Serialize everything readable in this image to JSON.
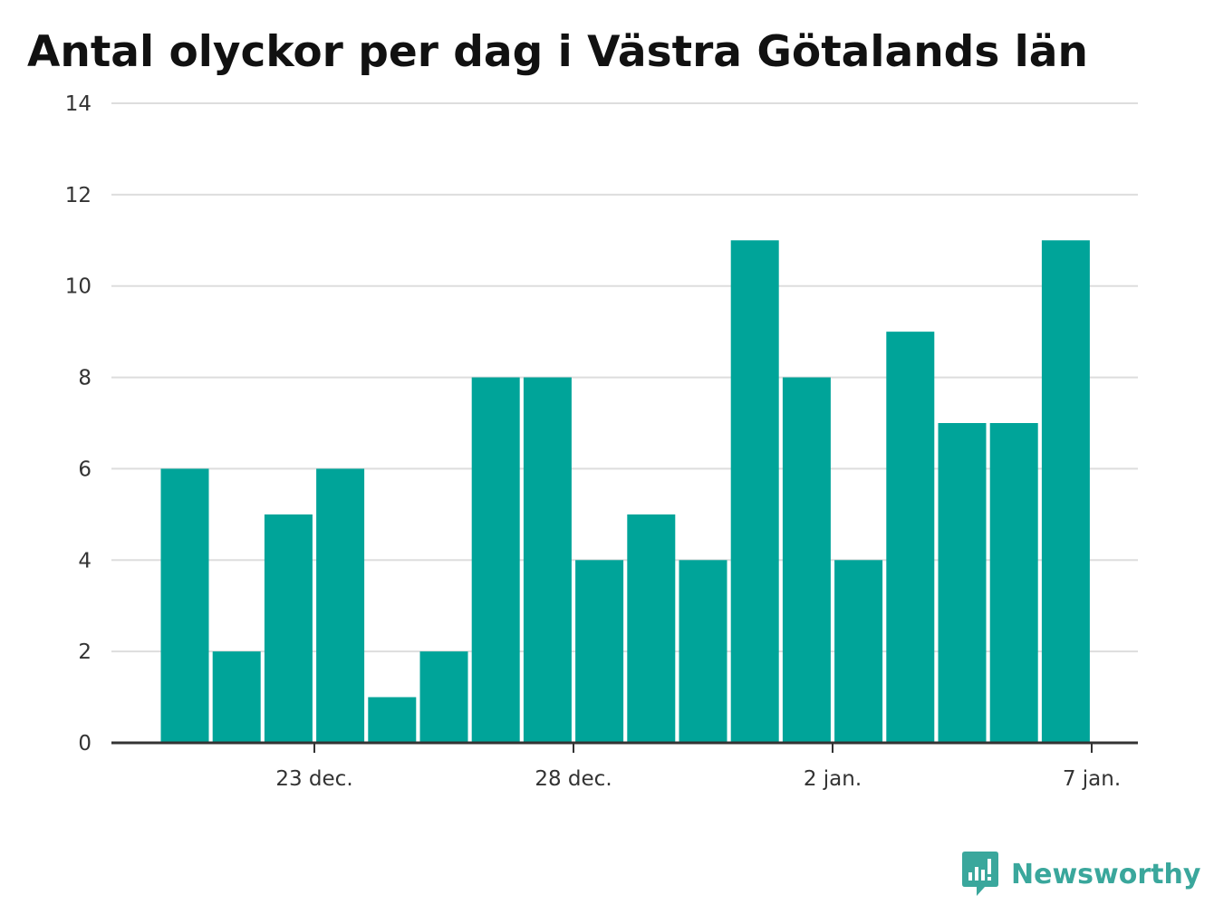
{
  "title": "Antal olyckor per dag i Västra Götalands län",
  "brand": {
    "name": "Newsworthy",
    "icon": "newsworthy-logo-icon",
    "color": "#3aa79c"
  },
  "colors": {
    "bar": "#00a499",
    "grid": "#dddddd",
    "axis": "#333333",
    "text": "#333333"
  },
  "chart_data": {
    "type": "bar",
    "title": "Antal olyckor per dag i Västra Götalands län",
    "xlabel": "",
    "ylabel": "",
    "x_axis_type": "date",
    "categories": [
      "2019-12-20",
      "2019-12-21",
      "2019-12-22",
      "2019-12-23",
      "2019-12-24",
      "2019-12-25",
      "2019-12-26",
      "2019-12-27",
      "2019-12-28",
      "2019-12-29",
      "2019-12-30",
      "2019-12-31",
      "2020-01-01",
      "2020-01-02",
      "2020-01-03",
      "2020-01-04",
      "2020-01-05",
      "2020-01-06"
    ],
    "values": [
      6,
      2,
      5,
      6,
      1,
      2,
      8,
      8,
      4,
      5,
      4,
      11,
      8,
      4,
      9,
      7,
      7,
      11
    ],
    "ylim": [
      0,
      14
    ],
    "yticks": [
      0,
      2,
      4,
      6,
      8,
      10,
      12,
      14
    ],
    "ytick_labels": [
      "0",
      "2",
      "4",
      "6",
      "8",
      "10",
      "12",
      "14"
    ],
    "xticks": [
      {
        "value": "2019-12-23",
        "label": "23 dec."
      },
      {
        "value": "2019-12-28",
        "label": "28 dec."
      },
      {
        "value": "2020-01-02",
        "label": "2 jan."
      },
      {
        "value": "2020-01-07",
        "label": "7 jan."
      }
    ],
    "grid": true,
    "legend": "none"
  }
}
